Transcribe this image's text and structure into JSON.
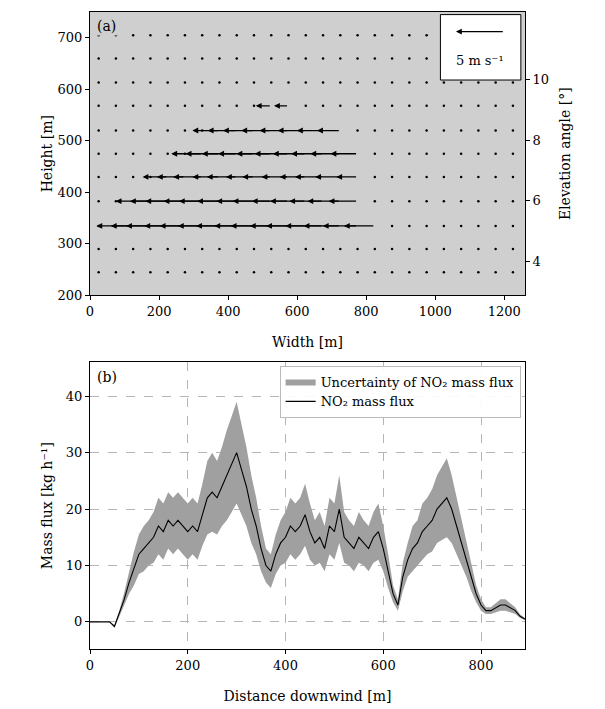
{
  "chart_data": [
    {
      "type": "quiver",
      "panel": "(a)",
      "x_label": "Width [m]",
      "y_label": "Height [m]",
      "y2_label": "Elevation angle [°]",
      "xlim": [
        0,
        1260
      ],
      "xticks": [
        0,
        200,
        400,
        600,
        800,
        1000,
        1200
      ],
      "ylim": [
        200,
        750
      ],
      "yticks": [
        200,
        300,
        400,
        500,
        600,
        700
      ],
      "y2lim": [
        2.88,
        12.23
      ],
      "y2ticks": [
        4,
        6,
        8,
        10
      ],
      "grid": false,
      "color": "#000000",
      "key": {
        "value": 5,
        "label": "5 m s⁻¹"
      },
      "x": [
        25,
        75,
        125,
        175,
        225,
        275,
        325,
        375,
        425,
        475,
        525,
        575,
        625,
        675,
        725,
        775,
        825,
        875,
        925,
        975,
        1025,
        1075,
        1125,
        1175,
        1225
      ],
      "y": [
        245,
        290,
        335,
        383,
        430,
        475,
        520,
        568,
        613,
        660,
        705
      ],
      "u": [
        [
          0,
          0,
          0,
          0,
          0,
          0,
          0,
          0,
          0,
          0,
          0,
          0,
          0,
          0,
          0,
          0,
          0,
          0,
          0,
          0,
          0,
          0,
          0,
          0,
          0
        ],
        [
          0,
          0,
          0,
          0,
          0,
          0,
          0,
          0,
          0,
          0,
          0,
          0,
          0,
          0,
          0,
          0,
          0,
          0,
          0,
          0,
          0,
          0,
          0,
          0,
          0
        ],
        [
          0,
          0,
          -3.8,
          -4.1,
          -4.3,
          -4.2,
          -4.4,
          -4.3,
          -4.2,
          -4.1,
          -4.2,
          -4.0,
          -4.1,
          -3.9,
          -3.8,
          -3.6,
          -3.2,
          0,
          0,
          0,
          0,
          0,
          0,
          0,
          0
        ],
        [
          0,
          0,
          0,
          -3.6,
          -3.9,
          -4.1,
          -4.0,
          -4.2,
          -4.1,
          -3.9,
          -4.0,
          -3.8,
          -3.7,
          -3.5,
          -3.4,
          -3.0,
          0,
          0,
          0,
          0,
          0,
          0,
          0,
          0,
          0
        ],
        [
          0,
          0,
          0,
          0,
          -2.6,
          -2.9,
          -3.0,
          -2.8,
          -3.1,
          -2.9,
          -3.0,
          -2.8,
          -2.7,
          -2.9,
          -2.6,
          -2.2,
          0,
          0,
          0,
          0,
          0,
          0,
          0,
          0,
          0
        ],
        [
          0,
          0,
          0,
          0,
          0,
          0,
          -3.2,
          -3.5,
          -3.6,
          -3.7,
          -3.6,
          -3.5,
          -3.4,
          -3.3,
          -3.1,
          -2.8,
          0,
          0,
          0,
          0,
          0,
          0,
          0,
          0,
          0
        ],
        [
          0,
          0,
          0,
          0,
          0,
          0,
          0,
          -2.8,
          -3.0,
          -3.2,
          -3.1,
          -3.0,
          -2.9,
          -2.7,
          -2.4,
          0,
          0,
          0,
          0,
          0,
          0,
          0,
          0,
          0,
          0
        ],
        [
          0,
          0,
          0,
          0,
          0,
          0,
          0,
          0,
          0,
          0,
          -1.6,
          -1.5,
          0,
          0,
          0,
          0,
          0,
          0,
          0,
          0,
          0,
          0,
          0,
          0,
          0
        ],
        [
          0,
          0,
          0,
          0,
          0,
          0,
          0,
          0,
          0,
          0,
          0,
          0,
          0,
          0,
          0,
          0,
          0,
          0,
          0,
          0,
          0,
          0,
          0,
          0,
          0
        ],
        [
          0,
          0,
          0,
          0,
          0,
          0,
          0,
          0,
          0,
          0,
          0,
          0,
          0,
          0,
          0,
          0,
          0,
          0,
          0,
          0,
          0,
          0,
          0,
          0,
          0
        ],
        [
          0,
          0,
          0,
          0,
          0,
          0,
          0,
          0,
          0,
          0,
          0,
          0,
          0,
          0,
          0,
          0,
          0,
          0,
          0,
          0,
          0,
          0,
          0,
          0,
          0
        ]
      ]
    },
    {
      "type": "line",
      "panel": "(b)",
      "x_label": "Distance downwind [m]",
      "y_label": "Mass flux [kg h⁻¹]",
      "xlim": [
        0,
        890
      ],
      "xticks": [
        0,
        200,
        400,
        600,
        800
      ],
      "ylim": [
        -4.8,
        46
      ],
      "yticks": [
        0,
        10,
        20,
        30,
        40
      ],
      "grid": true,
      "legend": "top right",
      "x": [
        0,
        10,
        20,
        30,
        40,
        50,
        60,
        70,
        80,
        90,
        100,
        110,
        120,
        130,
        140,
        150,
        160,
        170,
        180,
        190,
        200,
        210,
        220,
        230,
        240,
        250,
        260,
        270,
        280,
        290,
        300,
        310,
        320,
        330,
        340,
        350,
        360,
        370,
        380,
        390,
        400,
        410,
        420,
        430,
        440,
        450,
        460,
        470,
        480,
        490,
        500,
        510,
        520,
        530,
        540,
        550,
        560,
        570,
        580,
        590,
        600,
        610,
        620,
        630,
        640,
        650,
        660,
        670,
        680,
        690,
        700,
        710,
        720,
        730,
        740,
        750,
        760,
        770,
        780,
        790,
        800,
        810,
        820,
        830,
        840,
        850,
        860,
        870,
        880,
        890
      ],
      "series": [
        {
          "name": "NO₂ mass flux",
          "color": "#000000",
          "values": [
            0,
            0,
            0,
            0,
            0,
            -0.8,
            1.5,
            4,
            7,
            9.5,
            12,
            13,
            14,
            15,
            17,
            16,
            18,
            17,
            18,
            17,
            16,
            17,
            16,
            19,
            22,
            23,
            22,
            24,
            26,
            28,
            30,
            27,
            24,
            20,
            17,
            13,
            10,
            9,
            12,
            14,
            15,
            17,
            16,
            17,
            19,
            16,
            14,
            15,
            13,
            17,
            16,
            20,
            15,
            14,
            13,
            15,
            14,
            13,
            15,
            16,
            13,
            9,
            5,
            3,
            8,
            11,
            13,
            14,
            16,
            17,
            18,
            20,
            21,
            22,
            20,
            17,
            14,
            11,
            8,
            5,
            3,
            2,
            2,
            2.5,
            3,
            3,
            2.5,
            2,
            1,
            0.5
          ],
          "error": [
            0,
            0,
            0,
            0,
            0,
            0.3,
            0.5,
            1.2,
            2,
            3,
            3.5,
            4,
            4,
            4.5,
            5,
            5,
            5,
            5,
            5,
            5,
            5,
            5,
            5,
            5.5,
            6.5,
            7,
            6.5,
            7,
            8,
            8.5,
            9,
            8,
            7,
            6,
            5,
            4,
            3,
            3,
            3.5,
            4,
            4.5,
            5,
            5,
            5,
            5.5,
            5,
            4,
            4.5,
            4,
            5,
            5,
            6,
            4.5,
            4,
            4,
            4.5,
            4,
            4,
            4.5,
            5,
            4,
            3,
            1.5,
            1,
            2.5,
            3,
            4,
            4,
            5,
            5,
            5.5,
            6,
            6.5,
            7,
            6,
            5,
            4,
            3,
            2.5,
            1.5,
            1,
            0.6,
            0.6,
            0.8,
            1,
            1,
            0.8,
            0.6,
            0.3,
            0.2
          ]
        }
      ],
      "uncertainty": {
        "name": "Uncertainty of NO₂ mass flux",
        "color": "#a0a0a0"
      }
    }
  ]
}
